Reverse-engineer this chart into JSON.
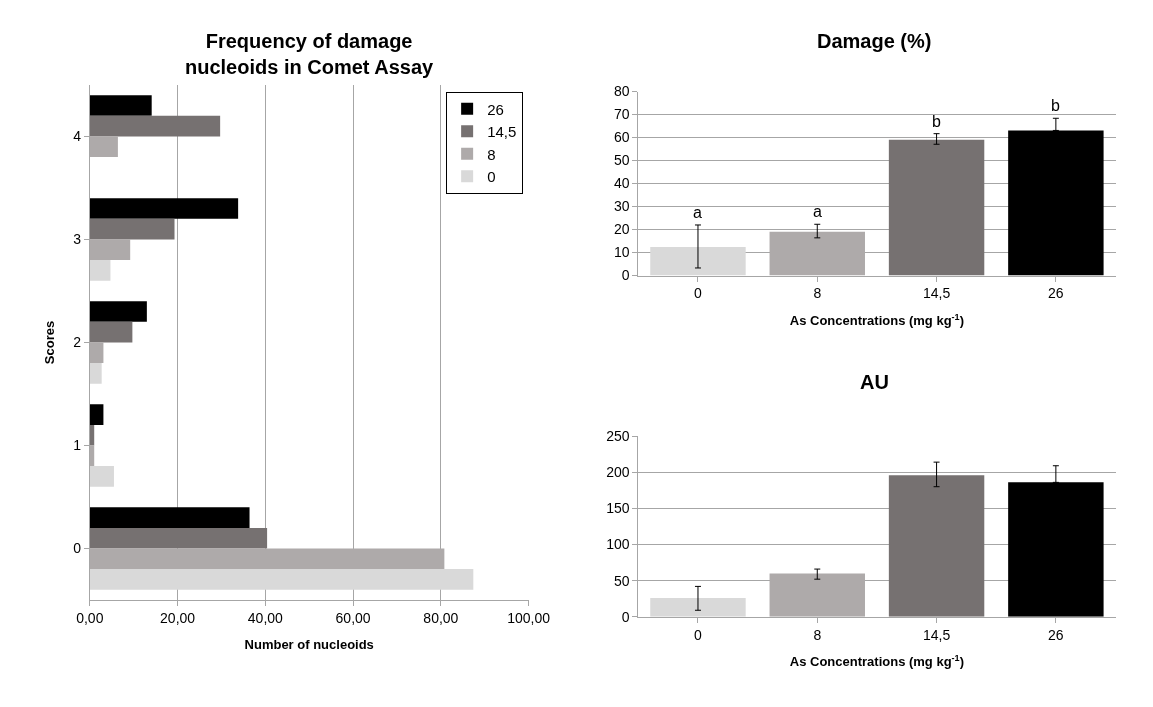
{
  "chart_data": [
    {
      "type": "bar",
      "orientation": "horizontal",
      "title": "Frequency of damage nucleoids in Comet Assay",
      "xlabel": "Number of nucleoids",
      "ylabel": "Scores",
      "categories": [
        "4",
        "3",
        "2",
        "1",
        "0"
      ],
      "series": [
        {
          "name": "26",
          "color": "#000000",
          "values": [
            14.1,
            33.8,
            13.0,
            3.1,
            36.4
          ]
        },
        {
          "name": "14,5",
          "color": "#767171",
          "values": [
            29.7,
            19.3,
            9.7,
            1.0,
            40.4
          ]
        },
        {
          "name": "8",
          "color": "#aeaaaa",
          "values": [
            6.4,
            9.2,
            3.1,
            1.0,
            80.8
          ]
        },
        {
          "name": "0",
          "color": "#d9d9d9",
          "values": [
            0,
            4.7,
            2.7,
            5.5,
            87.4
          ]
        }
      ],
      "xlim": [
        0,
        100
      ],
      "xticks": [
        {
          "value": 0,
          "label": "0,00"
        },
        {
          "value": 20,
          "label": "20,00"
        },
        {
          "value": 40,
          "label": "40,00"
        },
        {
          "value": 60,
          "label": "60,00"
        },
        {
          "value": 80,
          "label": "80,00"
        },
        {
          "value": 100,
          "label": "100,00"
        }
      ],
      "grid": "x",
      "legend": "top right"
    },
    {
      "type": "bar",
      "title": "Damage (%)",
      "xlabel": "As Concentrations (mg kg$^{-1}$)",
      "categories": [
        "0",
        "8",
        "14,5",
        "26"
      ],
      "values": [
        12.4,
        19.0,
        59.1,
        63.1
      ],
      "colors": [
        "#d9d9d9",
        "#aeaaaa",
        "#767171",
        "#000000"
      ],
      "errors": [
        [
          3.3,
          22.0
        ],
        [
          16.4,
          22.3
        ],
        [
          57.1,
          61.7
        ],
        [
          63.1,
          68.4
        ]
      ],
      "ylim": [
        0,
        80
      ],
      "yticks": [
        0,
        10,
        20,
        30,
        40,
        50,
        60,
        70,
        80
      ],
      "grid": "y",
      "annotations": [
        {
          "text": "a",
          "x": "0",
          "y": 22.0
        },
        {
          "text": "a",
          "x": "8",
          "y": 22.3
        },
        {
          "text": "b",
          "x": "14,5",
          "y": 61.7
        },
        {
          "text": "b",
          "x": "26",
          "y": 68.4
        }
      ]
    },
    {
      "type": "bar",
      "title": "AU",
      "xlabel": "As Concentrations (mg kg$^{-1}$)",
      "categories": [
        "0",
        "8",
        "14,5",
        "26"
      ],
      "values": [
        26,
        60,
        196,
        186
      ],
      "colors": [
        "#d9d9d9",
        "#aeaaaa",
        "#767171",
        "#000000"
      ],
      "errors": [
        [
          9,
          42
        ],
        [
          52,
          66
        ],
        [
          180,
          214
        ],
        [
          186,
          209
        ]
      ],
      "ylim": [
        0,
        250
      ],
      "yticks": [
        0,
        50,
        100,
        150,
        200,
        250
      ],
      "grid": "y"
    }
  ]
}
